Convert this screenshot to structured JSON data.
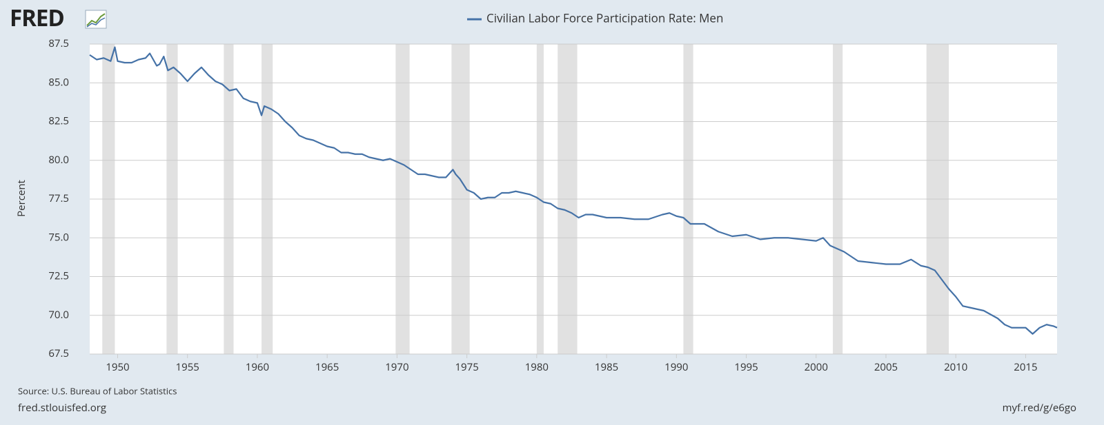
{
  "brand": "FRED",
  "site": "fred.stlouisfed.org",
  "short_url": "myf.red/g/e6go",
  "chart_data": {
    "type": "line",
    "source": "Source: U.S. Bureau of Labor Statistics",
    "ylabel": "Percent",
    "grid": true,
    "xlim": [
      1948,
      2017.25
    ],
    "ylim": [
      67.5,
      87.5
    ],
    "xticks": [
      1950,
      1955,
      1960,
      1965,
      1970,
      1975,
      1980,
      1985,
      1990,
      1995,
      2000,
      2005,
      2010,
      2015
    ],
    "yticks": [
      67.5,
      {
        "value": 70,
        "label": "70.0"
      },
      72.5,
      {
        "value": 75,
        "label": "75.0"
      },
      77.5,
      {
        "value": 80,
        "label": "80.0"
      },
      82.5,
      {
        "value": 85,
        "label": "85.0"
      },
      87.5
    ],
    "recession_color": "#e1e1e1",
    "recessions": [
      [
        1948.9,
        1949.8
      ],
      [
        1953.5,
        1954.3
      ],
      [
        1957.6,
        1958.3
      ],
      [
        1960.3,
        1961.1
      ],
      [
        1969.9,
        1970.9
      ],
      [
        1973.9,
        1975.2
      ],
      [
        1980.0,
        1980.5
      ],
      [
        1981.5,
        1982.9
      ],
      [
        1990.5,
        1991.2
      ],
      [
        2001.2,
        2001.9
      ],
      [
        2007.9,
        2009.5
      ]
    ],
    "x": [
      1948.0,
      1948.5,
      1949.0,
      1949.5,
      1949.8,
      1950.0,
      1950.5,
      1951.0,
      1951.5,
      1952.0,
      1952.3,
      1952.8,
      1953.0,
      1953.3,
      1953.6,
      1954.0,
      1954.5,
      1955.0,
      1955.5,
      1956.0,
      1956.5,
      1957.0,
      1957.5,
      1958.0,
      1958.5,
      1959.0,
      1959.5,
      1960.0,
      1960.3,
      1960.5,
      1961.0,
      1961.5,
      1962.0,
      1962.5,
      1963.0,
      1963.5,
      1964.0,
      1964.5,
      1965.0,
      1965.5,
      1966.0,
      1966.5,
      1967.0,
      1967.5,
      1968.0,
      1968.5,
      1969.0,
      1969.5,
      1970.0,
      1970.5,
      1971.0,
      1971.5,
      1972.0,
      1972.5,
      1973.0,
      1973.5,
      1974.0,
      1974.2,
      1974.5,
      1975.0,
      1975.5,
      1976.0,
      1976.5,
      1977.0,
      1977.5,
      1978.0,
      1978.5,
      1979.0,
      1979.5,
      1980.0,
      1980.5,
      1981.0,
      1981.5,
      1982.0,
      1982.5,
      1983.0,
      1983.5,
      1984.0,
      1985.0,
      1986.0,
      1987.0,
      1988.0,
      1989.0,
      1989.5,
      1990.0,
      1990.5,
      1991.0,
      1992.0,
      1993.0,
      1994.0,
      1995.0,
      1996.0,
      1997.0,
      1998.0,
      1999.0,
      2000.0,
      2000.5,
      2001.0,
      2002.0,
      2003.0,
      2004.0,
      2005.0,
      2006.0,
      2006.8,
      2007.5,
      2008.0,
      2008.5,
      2009.0,
      2009.5,
      2010.0,
      2010.5,
      2011.0,
      2012.0,
      2013.0,
      2013.5,
      2014.0,
      2015.0,
      2015.5,
      2016.0,
      2016.5,
      2017.0,
      2017.25
    ],
    "series": [
      {
        "name": "Civilian Labor Force Participation Rate: Men",
        "color": "#4572a7",
        "values": [
          86.8,
          86.5,
          86.6,
          86.4,
          87.3,
          86.4,
          86.3,
          86.3,
          86.5,
          86.6,
          86.9,
          86.1,
          86.2,
          86.7,
          85.8,
          86.0,
          85.6,
          85.1,
          85.6,
          86.0,
          85.5,
          85.1,
          84.9,
          84.5,
          84.6,
          84.0,
          83.8,
          83.7,
          82.9,
          83.5,
          83.3,
          83.0,
          82.5,
          82.1,
          81.6,
          81.4,
          81.3,
          81.1,
          80.9,
          80.8,
          80.5,
          80.5,
          80.4,
          80.4,
          80.2,
          80.1,
          80.0,
          80.1,
          79.9,
          79.7,
          79.4,
          79.1,
          79.1,
          79.0,
          78.9,
          78.9,
          79.4,
          79.1,
          78.8,
          78.1,
          77.9,
          77.5,
          77.6,
          77.6,
          77.9,
          77.9,
          78.0,
          77.9,
          77.8,
          77.6,
          77.3,
          77.2,
          76.9,
          76.8,
          76.6,
          76.3,
          76.5,
          76.5,
          76.3,
          76.3,
          76.2,
          76.2,
          76.5,
          76.6,
          76.4,
          76.3,
          75.9,
          75.9,
          75.4,
          75.1,
          75.2,
          74.9,
          75.0,
          75.0,
          74.9,
          74.8,
          75.0,
          74.5,
          74.1,
          73.5,
          73.4,
          73.3,
          73.3,
          73.6,
          73.2,
          73.1,
          72.9,
          72.3,
          71.7,
          71.2,
          70.6,
          70.5,
          70.3,
          69.8,
          69.4,
          69.2,
          69.2,
          68.8,
          69.2,
          69.4,
          69.3,
          69.2
        ]
      }
    ]
  }
}
